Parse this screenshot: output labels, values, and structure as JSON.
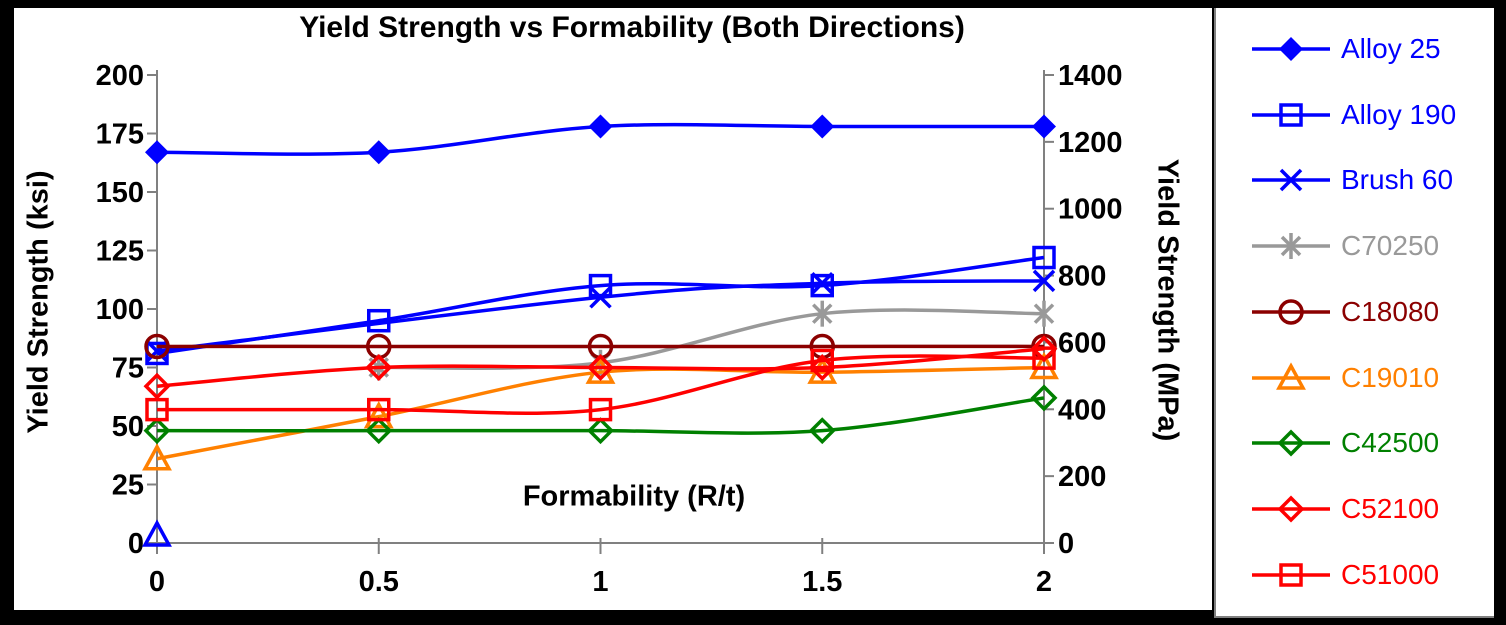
{
  "background": "#000000",
  "chart_panel_bg": "#ffffff",
  "axis_color": "#808080",
  "text_color": "#000000",
  "chart_data": {
    "type": "line",
    "title": "Yield Strength vs Formability (Both Directions)",
    "grid": false,
    "legend_position": "right",
    "x_axis": {
      "label": "Formability (R/t)",
      "range": [
        0,
        2
      ],
      "ticks": [
        "0",
        "0.5",
        "1",
        "1.5",
        "2"
      ],
      "tick_values": [
        0,
        0.5,
        1,
        1.5,
        2
      ]
    },
    "y_axis_left": {
      "label": "Yield Strength (ksi)",
      "range": [
        0,
        200
      ],
      "ticks": [
        "0",
        "25",
        "50",
        "75",
        "100",
        "125",
        "150",
        "175",
        "200"
      ],
      "tick_values": [
        0,
        25,
        50,
        75,
        100,
        125,
        150,
        175,
        200
      ]
    },
    "y_axis_right": {
      "label": "Yield Strength (MPa)",
      "range": [
        0,
        1400
      ],
      "ticks": [
        "0",
        "200",
        "400",
        "600",
        "800",
        "1000",
        "1200",
        "1400"
      ],
      "tick_values": [
        0,
        200,
        400,
        600,
        800,
        1000,
        1200,
        1400
      ]
    },
    "series": [
      {
        "name": "Alloy 25",
        "color": "#0000ff",
        "marker": "diamond-filled",
        "x": [
          0,
          0.5,
          1,
          1.5,
          2
        ],
        "ksi": [
          167,
          167,
          178,
          178,
          178
        ]
      },
      {
        "name": "Alloy 190",
        "color": "#0000ff",
        "marker": "square-open",
        "x": [
          0,
          0.5,
          1,
          1.5,
          2
        ],
        "ksi": [
          81,
          95,
          110,
          110,
          122
        ]
      },
      {
        "name": "Brush 60",
        "color": "#0000ff",
        "marker": "x-cross",
        "x": [
          0,
          1,
          1.5,
          2
        ],
        "ksi": [
          82,
          105,
          111,
          112
        ]
      },
      {
        "name": "C70250",
        "color": "#999999",
        "marker": "asterisk",
        "x": [
          0.5,
          1,
          1.5,
          2
        ],
        "ksi": [
          75,
          77,
          98,
          98
        ]
      },
      {
        "name": "C18080",
        "color": "#8b0000",
        "marker": "circle-open",
        "x": [
          0,
          0.5,
          1,
          1.5,
          2
        ],
        "ksi": [
          84,
          84,
          84,
          84,
          84
        ]
      },
      {
        "name": "C19010",
        "color": "#ff8000",
        "marker": "triangle-open",
        "x": [
          0,
          0.5,
          1,
          1.5,
          2
        ],
        "ksi": [
          36,
          54,
          73,
          73,
          75
        ]
      },
      {
        "name": "C42500",
        "color": "#008000",
        "marker": "diamond-open",
        "x": [
          0,
          0.5,
          1,
          1.5,
          2
        ],
        "ksi": [
          48,
          48,
          48,
          48,
          62
        ]
      },
      {
        "name": "C52100",
        "color": "#ff0000",
        "marker": "diamond-open",
        "x": [
          0,
          0.5,
          1,
          1.5,
          2
        ],
        "ksi": [
          67,
          75,
          75,
          75,
          83
        ]
      },
      {
        "name": "C51000",
        "color": "#ff0000",
        "marker": "square-open",
        "x": [
          0,
          0.5,
          1,
          1.5,
          2
        ],
        "ksi": [
          57,
          57,
          57,
          78,
          79
        ]
      }
    ],
    "extra_markers": [
      {
        "marker": "triangle-open",
        "color": "#0000ff",
        "x": 0,
        "ksi": 0
      }
    ]
  },
  "legend": {
    "entries": [
      {
        "label": "Alloy 25",
        "color": "#0000ff",
        "marker": "diamond-filled"
      },
      {
        "label": "Alloy 190",
        "color": "#0000ff",
        "marker": "square-open"
      },
      {
        "label": "Brush 60",
        "color": "#0000ff",
        "marker": "x-cross"
      },
      {
        "label": "C70250",
        "color": "#999999",
        "marker": "asterisk"
      },
      {
        "label": "C18080",
        "color": "#8b0000",
        "marker": "circle-open"
      },
      {
        "label": "C19010",
        "color": "#ff8000",
        "marker": "triangle-open"
      },
      {
        "label": "C42500",
        "color": "#008000",
        "marker": "diamond-open"
      },
      {
        "label": "C52100",
        "color": "#ff0000",
        "marker": "diamond-open"
      },
      {
        "label": "C51000",
        "color": "#ff0000",
        "marker": "square-open"
      }
    ]
  }
}
